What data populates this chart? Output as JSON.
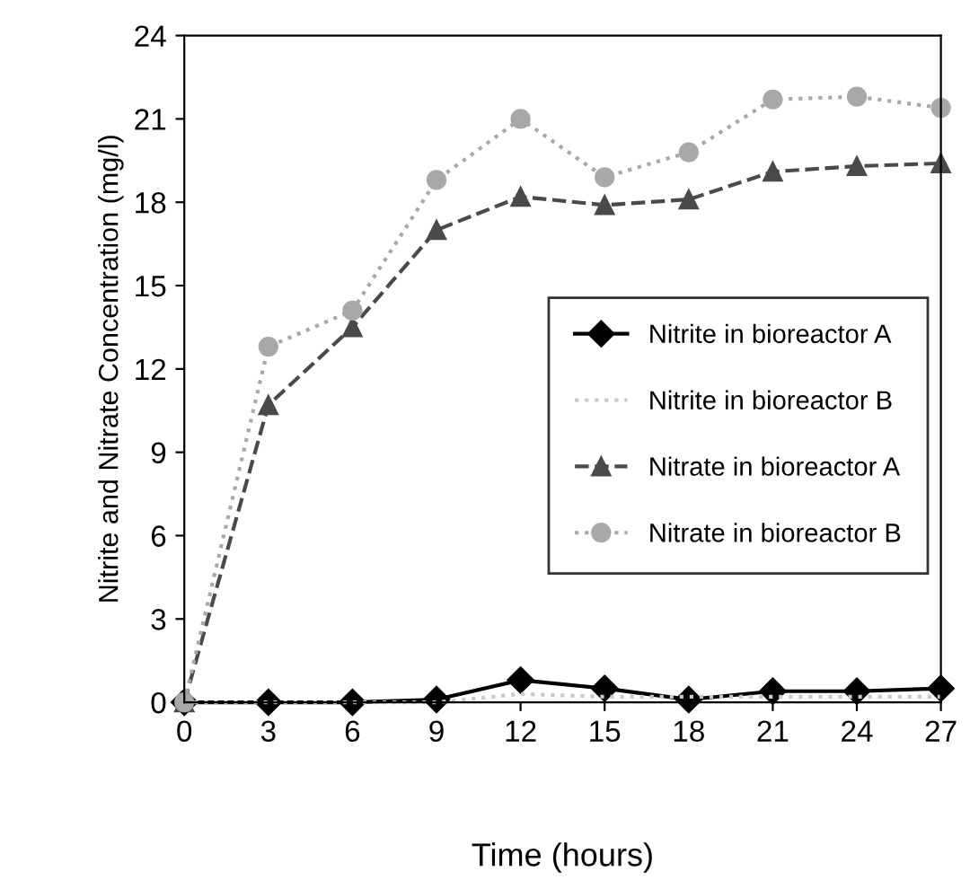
{
  "chart_data": {
    "type": "line",
    "xlabel": "Time (hours)",
    "ylabel": "Nitrite and Nitrate Concentration (mg/l)",
    "x": [
      0,
      3,
      6,
      9,
      12,
      15,
      18,
      21,
      24,
      27
    ],
    "xlim": [
      0,
      27
    ],
    "xticks": [
      0,
      3,
      6,
      9,
      12,
      15,
      18,
      21,
      24,
      27
    ],
    "ylim": [
      0,
      24
    ],
    "yticks": [
      0,
      3,
      6,
      9,
      12,
      15,
      18,
      21,
      24
    ],
    "grid": false,
    "legend": "right",
    "series": [
      {
        "name": "Nitrite in bioreactor A",
        "color": "#000000",
        "marker": "diamond",
        "line_style": "solid",
        "values": [
          0,
          0,
          0,
          0.1,
          0.8,
          0.5,
          0.1,
          0.4,
          0.4,
          0.5
        ]
      },
      {
        "name": "Nitrite in bioreactor B",
        "color": "#c8c8c8",
        "marker": "none",
        "line_style": "dotted",
        "values": [
          0,
          0,
          0,
          0,
          0.3,
          0.2,
          0.2,
          0.2,
          0.2,
          0.2
        ]
      },
      {
        "name": "Nitrate in bioreactor A",
        "color": "#4a4a4a",
        "marker": "triangle",
        "line_style": "dashed",
        "values": [
          0,
          10.7,
          13.5,
          17,
          18.2,
          17.9,
          18.1,
          19.1,
          19.3,
          19.4
        ]
      },
      {
        "name": "Nitrate in bioreactor B",
        "color": "#a8a8a8",
        "marker": "circle",
        "line_style": "dotted",
        "values": [
          0,
          12.8,
          14.1,
          18.8,
          21,
          18.9,
          19.8,
          21.7,
          21.8,
          21.4
        ]
      }
    ]
  }
}
